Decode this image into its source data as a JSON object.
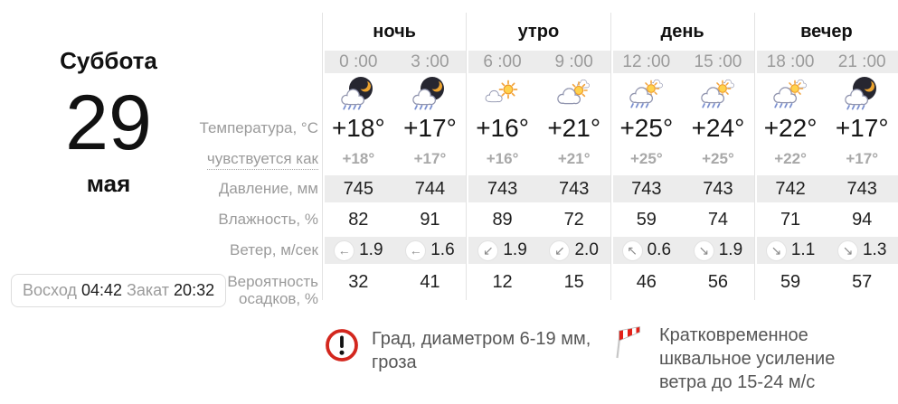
{
  "date": {
    "weekday": "Суббота",
    "day": "29",
    "month": "мая"
  },
  "sun": {
    "sunrise_label": "Восход",
    "sunrise_time": "04:42",
    "sunset_label": "Закат",
    "sunset_time": "20:32"
  },
  "row_labels": {
    "temperature": "Температура, °C",
    "feels_like": "чувствуется как",
    "pressure": "Давление, мм",
    "humidity": "Влажность, %",
    "wind": "Ветер, м/сек",
    "precip_line1": "Вероятность",
    "precip_line2": "осадков, %"
  },
  "forecast": {
    "periods": [
      {
        "label": "ночь",
        "cells": [
          {
            "time": "0 :00",
            "icon": "night-cloud-rain",
            "temp": "+18°",
            "feels": "+18°",
            "pressure": "745",
            "humidity": "82",
            "wind_dir_glyph": "←",
            "wind_dir_name": "arrow-left",
            "wind_speed": "1.9",
            "precip": "32"
          },
          {
            "time": "3 :00",
            "icon": "night-cloud-rain",
            "temp": "+17°",
            "feels": "+17°",
            "pressure": "744",
            "humidity": "91",
            "wind_dir_glyph": "←",
            "wind_dir_name": "arrow-left",
            "wind_speed": "1.6",
            "precip": "41"
          }
        ]
      },
      {
        "label": "утро",
        "cells": [
          {
            "time": "6 :00",
            "icon": "sun-cloud",
            "temp": "+16°",
            "feels": "+16°",
            "pressure": "743",
            "humidity": "89",
            "wind_dir_glyph": "↙",
            "wind_dir_name": "arrow-down-left",
            "wind_speed": "1.9",
            "precip": "12"
          },
          {
            "time": "9 :00",
            "icon": "cloud-sun",
            "temp": "+21°",
            "feels": "+21°",
            "pressure": "743",
            "humidity": "72",
            "wind_dir_glyph": "↙",
            "wind_dir_name": "arrow-down-left",
            "wind_speed": "2.0",
            "precip": "15"
          }
        ]
      },
      {
        "label": "день",
        "cells": [
          {
            "time": "12 :00",
            "icon": "cloud-sun-rain",
            "temp": "+25°",
            "feels": "+25°",
            "pressure": "743",
            "humidity": "59",
            "wind_dir_glyph": "↖",
            "wind_dir_name": "arrow-up-left",
            "wind_speed": "0.6",
            "precip": "46"
          },
          {
            "time": "15 :00",
            "icon": "cloud-sun-rain",
            "temp": "+24°",
            "feels": "+25°",
            "pressure": "743",
            "humidity": "74",
            "wind_dir_glyph": "↘",
            "wind_dir_name": "arrow-down-right",
            "wind_speed": "1.9",
            "precip": "56"
          }
        ]
      },
      {
        "label": "вечер",
        "cells": [
          {
            "time": "18 :00",
            "icon": "cloud-sun-rain",
            "temp": "+22°",
            "feels": "+22°",
            "pressure": "742",
            "humidity": "71",
            "wind_dir_glyph": "↘",
            "wind_dir_name": "arrow-down-right",
            "wind_speed": "1.1",
            "precip": "59"
          },
          {
            "time": "21 :00",
            "icon": "night-cloud-rain",
            "temp": "+17°",
            "feels": "+17°",
            "pressure": "743",
            "humidity": "94",
            "wind_dir_glyph": "↘",
            "wind_dir_name": "arrow-down-right",
            "wind_speed": "1.3",
            "precip": "57"
          }
        ]
      }
    ]
  },
  "warnings": [
    {
      "icon": "alert-exclamation",
      "text": "Град, диаметром 6-19 мм, гроза"
    },
    {
      "icon": "windsock",
      "text": "Кратковременное шквальное усиление ветра до 15-24 м/с"
    }
  ],
  "colors": {
    "stripe": "#ececec",
    "separator": "#e3e3e3",
    "muted_text": "#9b9b9b",
    "alert_red": "#d3271e",
    "rain_blue": "#7b90cf",
    "sun_orange": "#f2a33c",
    "night_dark": "#262630"
  }
}
